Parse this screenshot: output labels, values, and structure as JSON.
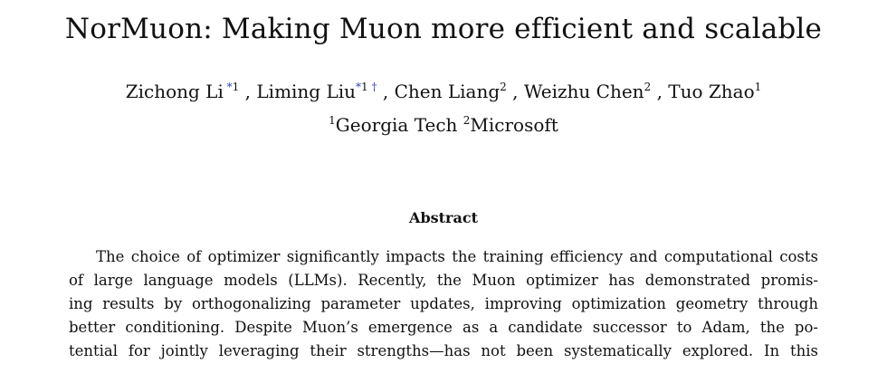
{
  "paper": {
    "title": "NorMuon: Making Muon more efficient and scalable",
    "authors": [
      {
        "name": "Zichong Li",
        "marks": [
          "*",
          "1"
        ]
      },
      {
        "name": "Liming Liu",
        "marks": [
          "*",
          "1",
          "†"
        ]
      },
      {
        "name": "Chen Liang",
        "marks": [
          "2"
        ]
      },
      {
        "name": "Weizhu Chen",
        "marks": [
          "2"
        ]
      },
      {
        "name": "Tuo Zhao",
        "marks": [
          "1"
        ]
      }
    ],
    "author_separator": ", ",
    "affiliations": [
      {
        "index": "1",
        "name": "Georgia Tech"
      },
      {
        "index": "2",
        "name": "Microsoft"
      }
    ],
    "abstract_heading": "Abstract",
    "abstract_lines": [
      "The choice of optimizer significantly impacts the training efficiency and computational costs",
      "of large language models (LLMs). Recently, the Muon optimizer has demonstrated promis-",
      "ing results by orthogonalizing parameter updates, improving optimization geometry through",
      "better conditioning. Despite Muon’s emergence as a candidate successor to Adam, the po-",
      "tential for jointly leveraging their strengths—has not been systematically explored. In this"
    ]
  },
  "colors": {
    "link_mark": "#2f3fbf",
    "text": "#111111"
  }
}
